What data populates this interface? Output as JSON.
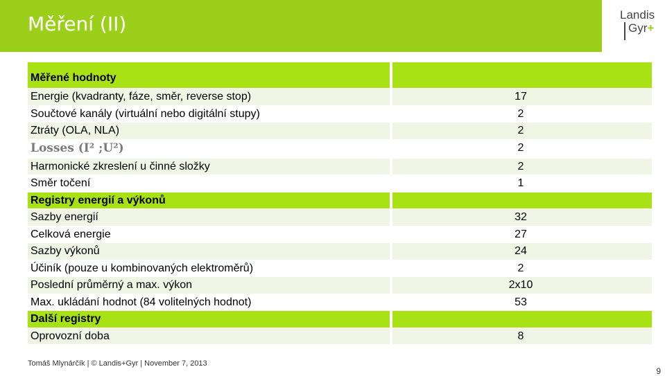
{
  "title": "Měření (II)",
  "logo": {
    "line1": "Landis",
    "line2": "Gyr",
    "plus": "+"
  },
  "rows": [
    {
      "label": "Měřené hodnoty",
      "value": "",
      "style": "green",
      "header": true
    },
    {
      "label": "Energie (kvadranty, fáze, směr, reverse stop)",
      "value": "17",
      "style": "light"
    },
    {
      "label": "Součtové kanály (virtuální nebo digitální stupy)",
      "value": "2",
      "style": "white"
    },
    {
      "label": "Ztráty (OLA, NLA)",
      "value": "2",
      "style": "light"
    },
    {
      "label": "Losses (I² ;U²)",
      "value": "2",
      "style": "white",
      "formula": true
    },
    {
      "label": "Harmonické zkreslení u činné složky",
      "value": "2",
      "style": "light"
    },
    {
      "label": "Směr točení",
      "value": "1",
      "style": "white"
    },
    {
      "label": "Registry energií a výkonů",
      "value": "",
      "style": "green",
      "header": true
    },
    {
      "label": "Sazby energií",
      "value": "32",
      "style": "light"
    },
    {
      "label": "Celková energie",
      "value": "27",
      "style": "white"
    },
    {
      "label": "Sazby výkonů",
      "value": "24",
      "style": "light"
    },
    {
      "label": "Účiník (pouze u kombinovaných elektroměrů)",
      "value": "2",
      "style": "white"
    },
    {
      "label": "Poslední průměrný a max. výkon",
      "value": "2x10",
      "style": "light"
    },
    {
      "label": "Max. ukládání hodnot (84 volitelných hodnot)",
      "value": "53",
      "style": "white"
    },
    {
      "label": "Další registry",
      "value": "",
      "style": "green",
      "header": true
    },
    {
      "label": "Oprovozní doba",
      "value": "8",
      "style": "light"
    }
  ],
  "footer": "Tomáš Mlynárčík | © Landis+Gyr | November 7, 2013",
  "page_number": "9",
  "colors": {
    "accent": "#9bcf1a",
    "row_green": "#a8e214",
    "row_light": "#f0f5e6"
  }
}
